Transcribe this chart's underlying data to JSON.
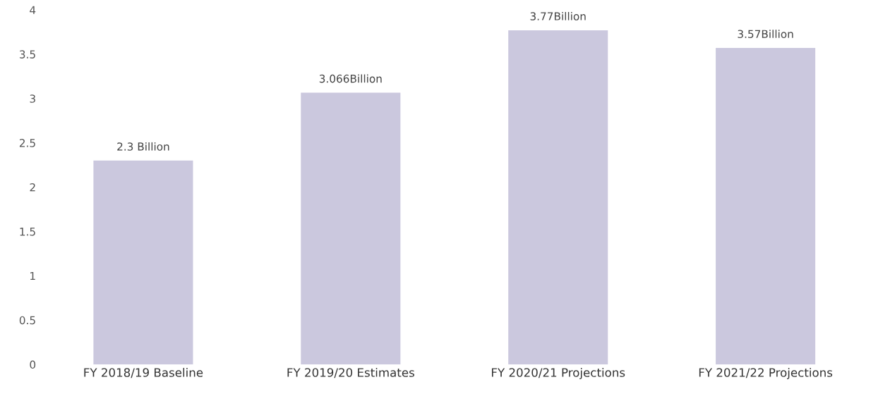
{
  "chart_data": {
    "type": "bar",
    "categories": [
      "FY 2018/19 Baseline",
      "FY 2019/20 Estimates",
      "FY 2020/21 Projections",
      "FY 2021/22 Projections"
    ],
    "values": [
      2.3,
      3.066,
      3.77,
      3.57
    ],
    "value_labels": [
      "2.3 Billion",
      "3.066Billion",
      "3.77Billion",
      "3.57Billion"
    ],
    "color": "#cbc8de",
    "ylim": [
      0,
      4
    ],
    "yticks": [
      0,
      0.5,
      1,
      1.5,
      2,
      2.5,
      3,
      3.5,
      4
    ],
    "grid": false,
    "legend": false
  }
}
